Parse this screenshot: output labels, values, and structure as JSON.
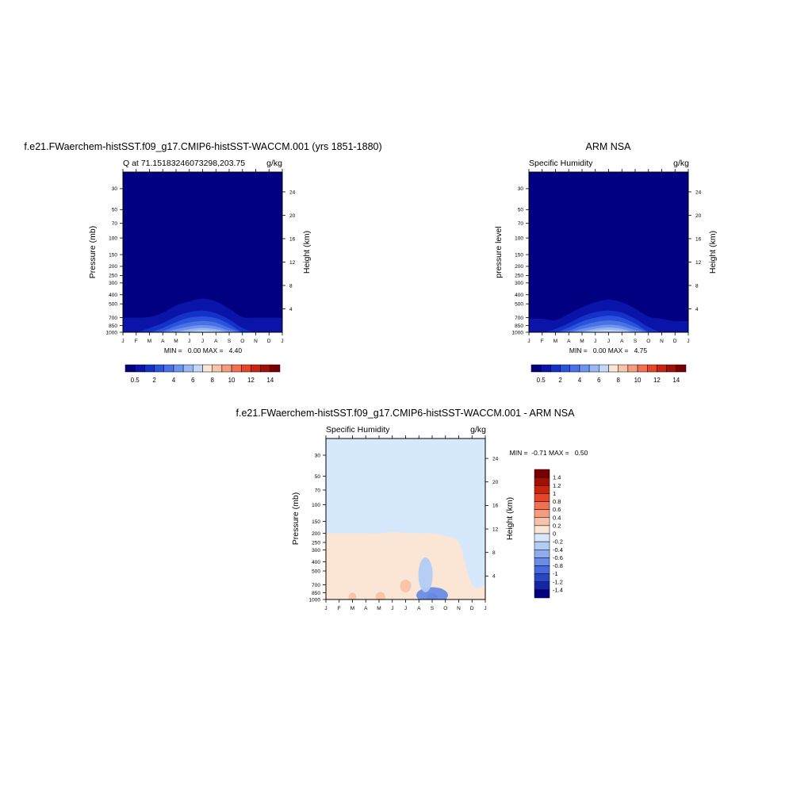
{
  "panels": [
    {
      "title": "f.e21.FWaerchem-histSST.f09_g17.CMIP6-histSST-WACCM.001 (yrs 1851-1880)",
      "left_label": "Q at 71.15183246073298,203.75",
      "right_label": "g/kg",
      "ylabel": "Pressure (mb)",
      "ylabel_right": "Height (km)",
      "stats": "MIN =   0.00 MAX =   4.40"
    },
    {
      "title": "ARM NSA",
      "left_label": "Specific Humidity",
      "right_label": "g/kg",
      "ylabel": "pressure level",
      "ylabel_right": "Height (km)",
      "stats": "MIN =   0.00 MAX =   4.75"
    },
    {
      "title": "f.e21.FWaerchem-histSST.f09_g17.CMIP6-histSST-WACCM.001 - ARM NSA",
      "left_label": "Specific Humidity",
      "right_label": "g/kg",
      "ylabel": "Pressure (mb)",
      "ylabel_right": "Height (km)",
      "stats": "MIN =  -0.71 MAX =   0.50"
    }
  ],
  "chart_data": [
    {
      "type": "heatmap",
      "title": "f.e21.FWaerchem-histSST.f09_g17.CMIP6-histSST-WACCM.001 (yrs 1851-1880)",
      "variable": "Q at 71.15183246073298,203.75",
      "units": "g/kg",
      "x_ticks": [
        "J",
        "F",
        "M",
        "A",
        "M",
        "J",
        "J",
        "A",
        "S",
        "O",
        "N",
        "D",
        "J"
      ],
      "y_ticks": [
        "30",
        "50",
        "70",
        "100",
        "150",
        "200",
        "250",
        "300",
        "400",
        "500",
        "700",
        "850",
        "1000"
      ],
      "y_right_ticks": [
        "4",
        "8",
        "12",
        "16",
        "20",
        "24"
      ],
      "ylim": [
        1000,
        20
      ],
      "log_scale_y": true,
      "min": 0.0,
      "max": 4.4,
      "contour_levels": [
        0.5,
        1,
        1.5,
        2,
        2.5,
        3,
        3.5,
        4
      ],
      "level_colors": [
        "#000080",
        "#0a14a8",
        "#1432c8",
        "#2a52dc",
        "#4a72e6",
        "#6e94ee",
        "#98b8f4",
        "#c2d8fa"
      ],
      "contour_tops_mb": [
        [
          700,
          700,
          690,
          620,
          520,
          470,
          440,
          470,
          560,
          690,
          700,
          700,
          700
        ],
        [
          1000,
          1000,
          900,
          800,
          680,
          610,
          590,
          630,
          730,
          900,
          1000,
          1000,
          1000
        ],
        [
          1000,
          1000,
          1000,
          900,
          780,
          700,
          680,
          710,
          820,
          1000,
          1000,
          1000,
          1000
        ],
        [
          1000,
          1000,
          1000,
          970,
          860,
          790,
          760,
          790,
          900,
          1000,
          1000,
          1000,
          1000
        ],
        [
          1000,
          1000,
          1000,
          1000,
          930,
          870,
          840,
          870,
          960,
          1000,
          1000,
          1000,
          1000
        ],
        [
          1000,
          1000,
          1000,
          1000,
          990,
          930,
          900,
          930,
          1000,
          1000,
          1000,
          1000,
          1000
        ],
        [
          1000,
          1000,
          1000,
          1000,
          1000,
          980,
          955,
          980,
          1000,
          1000,
          1000,
          1000,
          1000
        ],
        [
          1000,
          1000,
          1000,
          1000,
          1000,
          1000,
          990,
          1000,
          1000,
          1000,
          1000,
          1000,
          1000
        ]
      ],
      "colorbar_ticks": [
        "0.5",
        "2",
        "4",
        "6",
        "8",
        "10",
        "12",
        "14"
      ]
    },
    {
      "type": "heatmap",
      "title": "ARM NSA",
      "variable": "Specific Humidity",
      "units": "g/kg",
      "x_ticks": [
        "J",
        "F",
        "M",
        "A",
        "M",
        "J",
        "J",
        "A",
        "S",
        "O",
        "N",
        "D",
        "J"
      ],
      "y_ticks": [
        "30",
        "50",
        "70",
        "100",
        "150",
        "200",
        "250",
        "300",
        "400",
        "500",
        "700",
        "850",
        "1000"
      ],
      "y_right_ticks": [
        "4",
        "8",
        "12",
        "16",
        "20",
        "24"
      ],
      "ylim": [
        1000,
        20
      ],
      "log_scale_y": true,
      "min": 0.0,
      "max": 4.75,
      "contour_levels": [
        0.5,
        1,
        1.5,
        2,
        2.5,
        3,
        3.5,
        4
      ],
      "level_colors": [
        "#000080",
        "#0a14a8",
        "#1432c8",
        "#2a52dc",
        "#4a72e6",
        "#6e94ee",
        "#98b8f4",
        "#c2d8fa"
      ],
      "contour_tops_mb": [
        [
          720,
          720,
          740,
          640,
          540,
          480,
          450,
          480,
          560,
          680,
          720,
          760,
          760
        ],
        [
          1000,
          1000,
          920,
          800,
          680,
          610,
          590,
          620,
          720,
          880,
          1000,
          1000,
          1000
        ],
        [
          1000,
          1000,
          1000,
          890,
          770,
          700,
          670,
          700,
          810,
          980,
          1000,
          1000,
          1000
        ],
        [
          1000,
          1000,
          1000,
          960,
          850,
          780,
          750,
          780,
          880,
          1000,
          1000,
          1000,
          1000
        ],
        [
          1000,
          1000,
          1000,
          1000,
          920,
          860,
          830,
          860,
          950,
          1000,
          1000,
          1000,
          1000
        ],
        [
          1000,
          1000,
          1000,
          1000,
          980,
          920,
          890,
          920,
          1000,
          1000,
          1000,
          1000,
          1000
        ],
        [
          1000,
          1000,
          1000,
          1000,
          1000,
          970,
          945,
          970,
          1000,
          1000,
          1000,
          1000,
          1000
        ],
        [
          1000,
          1000,
          1000,
          1000,
          1000,
          1000,
          985,
          1000,
          1000,
          1000,
          1000,
          1000,
          1000
        ]
      ],
      "colorbar_ticks": [
        "0.5",
        "2",
        "4",
        "6",
        "8",
        "10",
        "12",
        "14"
      ]
    },
    {
      "type": "heatmap",
      "title": "f.e21.FWaerchem-histSST.f09_g17.CMIP6-histSST-WACCM.001 - ARM NSA",
      "variable": "Specific Humidity",
      "units": "g/kg",
      "x_ticks": [
        "J",
        "F",
        "M",
        "A",
        "M",
        "J",
        "J",
        "A",
        "S",
        "O",
        "N",
        "D",
        "J"
      ],
      "y_ticks": [
        "30",
        "50",
        "70",
        "100",
        "150",
        "200",
        "250",
        "300",
        "400",
        "500",
        "700",
        "850",
        "1000"
      ],
      "y_right_ticks": [
        "4",
        "8",
        "12",
        "16",
        "20",
        "24"
      ],
      "ylim": [
        1000,
        20
      ],
      "log_scale_y": true,
      "min": -0.71,
      "max": 0.5,
      "background_value_range": [
        -0.1,
        0
      ],
      "positive_region_top_mb": [
        200,
        200,
        200,
        200,
        200,
        195,
        198,
        200,
        200,
        215,
        250,
        700,
        700
      ],
      "features": [
        {
          "x_month": 8.0,
          "p_mb": 950,
          "value": -0.6
        },
        {
          "x_month": 8.0,
          "p_mb": 900,
          "value": -0.3
        },
        {
          "x_month": 7.5,
          "p_mb": 550,
          "value": -0.1
        },
        {
          "x_month": 6.0,
          "p_mb": 720,
          "value": 0.2
        },
        {
          "x_month": 4.1,
          "p_mb": 950,
          "value": 0.3
        },
        {
          "x_month": 2.0,
          "p_mb": 950,
          "value": 0.2
        }
      ],
      "colorbar_ticks": [
        "1.4",
        "1.2",
        "1",
        "0.8",
        "0.6",
        "0.4",
        "0.2",
        "0",
        "-0.2",
        "-0.4",
        "-0.6",
        "-0.8",
        "-1",
        "-1.2",
        "-1.4"
      ]
    }
  ],
  "colors": {
    "seq": [
      "#000080",
      "#0a14a8",
      "#1432c8",
      "#2a52dc",
      "#4a72e6",
      "#6e94ee",
      "#98b8f4",
      "#c2d8fa",
      "#fbe6d6",
      "#f8c2a8",
      "#f49c7e",
      "#ef7150",
      "#e6452a",
      "#c8240e",
      "#a01006",
      "#780000"
    ],
    "div": [
      "#780000",
      "#a01006",
      "#c8240e",
      "#e6452a",
      "#ef7150",
      "#f49c7e",
      "#f8c2a8",
      "#fbe6d6",
      "#d6e8fc",
      "#b2ccf4",
      "#8eacee",
      "#6a8ce6",
      "#4669dc",
      "#2a46c4",
      "#1426a8",
      "#000080"
    ]
  }
}
